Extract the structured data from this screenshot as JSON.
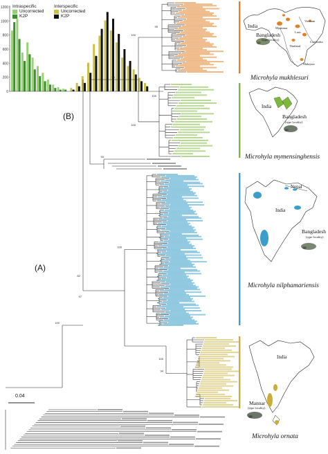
{
  "histogram": {
    "intraspecific_title": "Intraspecific",
    "interspecific_title": "Interspecific",
    "legend": {
      "intra_uncorrected": "Uncorrected",
      "intra_k2p": "K2P",
      "inter_uncorrected": "Uncorrected",
      "inter_k2p": "K2P"
    },
    "y_ticks": [
      "1200",
      "1000",
      "800",
      "600",
      "400",
      "200",
      "0"
    ],
    "colors": {
      "intra_uncorrected": "#9bd07a",
      "intra_k2p": "#3f8f2e",
      "inter_uncorrected": "#c8c24c",
      "inter_k2p": "#111111"
    }
  },
  "panels": {
    "a_label": "(A)",
    "b_label": "(B)"
  },
  "scale_bar": "0.04",
  "clades": [
    {
      "name": "Microhyla mukhlesuri",
      "color": "#e07f24"
    },
    {
      "name": "Microhyla mymensinghensis",
      "color": "#7cb83a"
    },
    {
      "name": "Microhyla nilphamariensis",
      "color": "#3a9ec9"
    },
    {
      "name": "Microhyla ornata",
      "color": "#c9ae3a"
    }
  ],
  "maps": {
    "m1": {
      "india": "India",
      "bangladesh": "Bangladesh",
      "type": "(type locality)",
      "vietnam": "Vietnam",
      "thailand": "Thailand",
      "cambodia": "Cambodia",
      "malaysia": "Malaysia",
      "myanmar": "Myanmar",
      "laos": "Laos"
    },
    "m2": {
      "india": "India",
      "bangladesh": "Bangladesh",
      "type": "(type locality)"
    },
    "m3": {
      "india": "India",
      "nepal": "Nepal",
      "bangladesh": "Bangladesh",
      "type": "(type locality)"
    },
    "m4": {
      "india": "India",
      "mannar": "Mannar",
      "type": "(type locality)"
    }
  },
  "support_values": [
    "100",
    "100",
    "96",
    "82",
    "100",
    "94",
    "100",
    "97",
    "100",
    "95",
    "100",
    "93"
  ],
  "outgroup_tips": [
    "Microhyla rubra",
    "Microhyla butleri",
    "Microhyla superciliaris",
    "Microhyla pulchra",
    "Microhyla fissipes",
    "Microhyla heymonsi",
    "Microhyla okinavensis",
    "Microhyla mantheyi",
    "Microhyla achatina",
    "Microhyla pulverata",
    "Microhyla annectens",
    "Microhyla borneensis",
    "Microhyla fanjingshanensis",
    "Microhyla laterite",
    "Microhyla sholigari",
    "Microhyla berdmorei",
    "Microhyla picta",
    "Microhyla pineticola",
    "Microhyla palmipes",
    "Microhyla petrigena",
    "Microhyla nanapollexa",
    "Microhyla marmorata"
  ],
  "clade_tip_counts": {
    "mukhlesuri": 48,
    "mymensinghensis": 28,
    "nilphamariensis": 115,
    "ornata": 34
  }
}
